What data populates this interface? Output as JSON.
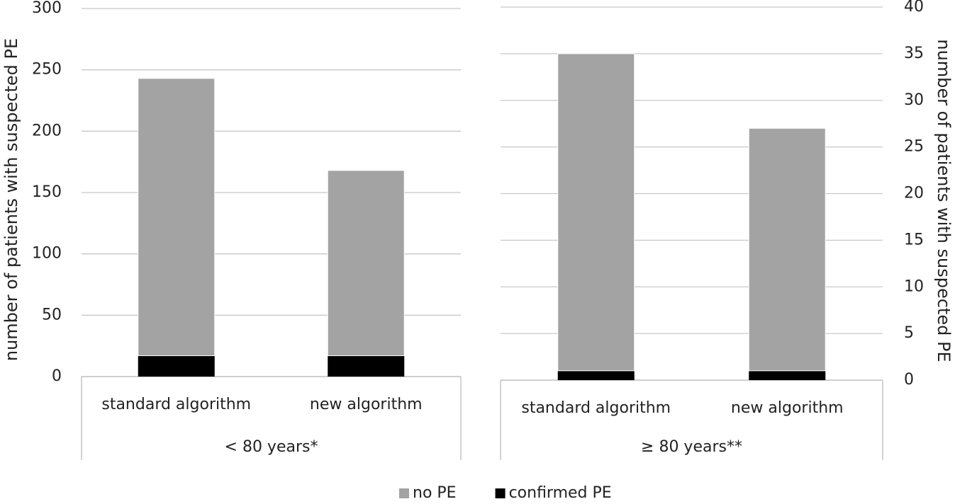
{
  "chart_data": [
    {
      "type": "bar",
      "stacked": true,
      "ylabel": "number of patients with suspected PE",
      "group_label": "< 80 years*",
      "categories": [
        "standard algorithm",
        "new algorithm"
      ],
      "series": [
        {
          "name": "confirmed PE",
          "color": "#000000",
          "values": [
            17,
            17
          ]
        },
        {
          "name": "no PE",
          "color": "#a3a3a3",
          "values": [
            226,
            151
          ]
        }
      ],
      "ylim": [
        0,
        300
      ],
      "yticks": [
        0,
        50,
        100,
        150,
        200,
        250,
        300
      ],
      "grid": true,
      "yaxis_side": "left"
    },
    {
      "type": "bar",
      "stacked": true,
      "ylabel": "number of patients with suspected PE",
      "group_label": "≥ 80 years**",
      "categories": [
        "standard algorithm",
        "new algorithm"
      ],
      "series": [
        {
          "color": "#000000",
          "values": [
            1,
            1
          ]
        },
        {
          "color": "#a3a3a3",
          "values": [
            34,
            26
          ]
        }
      ],
      "ylim": [
        0,
        40
      ],
      "yticks": [
        0,
        5,
        10,
        15,
        20,
        25,
        30,
        35,
        40
      ],
      "grid": true,
      "yaxis_side": "right"
    }
  ]
}
